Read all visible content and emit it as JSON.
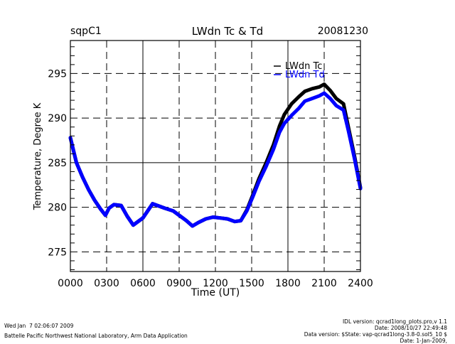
{
  "header": {
    "site": "sqpC1",
    "title": "LWdn Tc & Td",
    "date": "20081230"
  },
  "footer": {
    "timestamp": "Wed Jan  7 02:06:07 2009",
    "lab": "Battelle Pacific Northwest National Laboratory, Arm Data Application",
    "idl_version": "IDL version: qcrad1long_plots.pro,v 1.1",
    "idl_date": "Date: 2008/10/27 22:49:48",
    "data_version": "Data version: $State: vap-qcrad1long-3.8-0.sol5_10 $",
    "data_date": "Date: 1-Jan-2009,"
  },
  "chart_data": {
    "type": "line",
    "title": "LWdn Tc & Td",
    "xlabel": "Time (UT)",
    "ylabel": "Temperature, Degree K",
    "xlim": [
      0,
      24
    ],
    "ylim": [
      272.8,
      298.7
    ],
    "x_ticks": [
      0,
      3,
      6,
      9,
      12,
      15,
      18,
      21,
      24
    ],
    "x_tick_labels": [
      "0000",
      "0300",
      "0600",
      "0900",
      "1200",
      "1500",
      "1800",
      "2100",
      "2400"
    ],
    "y_ticks": [
      275,
      280,
      285,
      290,
      295
    ],
    "y_tick_labels": [
      "275",
      "280",
      "285",
      "290",
      "295"
    ],
    "grid": true,
    "legend_position": "top-right",
    "series": [
      {
        "name": "LWdn Tc",
        "color": "#000000",
        "x": [
          0,
          0.5,
          1,
          1.5,
          2,
          2.5,
          2.9,
          3.2,
          3.6,
          4.2,
          4.7,
          5.2,
          5.6,
          6.0,
          6.5,
          6.8,
          7.2,
          7.8,
          8.5,
          9.1,
          9.6,
          10.1,
          10.6,
          11.2,
          11.8,
          12.4,
          13.0,
          13.6,
          14.1,
          14.6,
          15.1,
          15.6,
          16.2,
          16.8,
          17.3,
          17.7,
          18.3,
          18.9,
          19.4,
          20.0,
          20.6,
          21.0,
          21.5,
          22.0,
          22.6,
          23.0,
          23.5,
          24.0
        ],
        "y": [
          287.8,
          285.0,
          283.4,
          282.0,
          280.8,
          279.8,
          279.1,
          279.9,
          280.3,
          280.2,
          279.0,
          278.0,
          278.4,
          278.8,
          279.8,
          280.4,
          280.2,
          279.9,
          279.6,
          279.0,
          278.5,
          277.9,
          278.3,
          278.7,
          278.9,
          278.8,
          278.7,
          278.4,
          278.5,
          279.7,
          281.4,
          283.2,
          285.0,
          287.0,
          289.1,
          290.4,
          291.6,
          292.4,
          293.0,
          293.3,
          293.5,
          293.8,
          293.1,
          292.2,
          291.6,
          289.0,
          285.8,
          282.2
        ]
      },
      {
        "name": "LWdn Td",
        "color": "#0000ff",
        "x": [
          0,
          0.5,
          1,
          1.5,
          2,
          2.5,
          2.9,
          3.2,
          3.6,
          4.2,
          4.7,
          5.2,
          5.6,
          6.0,
          6.5,
          6.8,
          7.2,
          7.8,
          8.5,
          9.1,
          9.6,
          10.1,
          10.6,
          11.2,
          11.8,
          12.4,
          13.0,
          13.6,
          14.1,
          14.6,
          15.1,
          15.6,
          16.2,
          16.8,
          17.3,
          17.7,
          18.3,
          18.9,
          19.4,
          20.0,
          20.6,
          21.0,
          21.5,
          22.0,
          22.6,
          23.0,
          23.5,
          24.0
        ],
        "y": [
          287.8,
          285.0,
          283.4,
          282.0,
          280.8,
          279.8,
          279.1,
          279.9,
          280.3,
          280.2,
          279.0,
          278.0,
          278.4,
          278.8,
          279.8,
          280.4,
          280.2,
          279.9,
          279.6,
          279.0,
          278.5,
          277.9,
          278.3,
          278.7,
          278.9,
          278.8,
          278.7,
          278.4,
          278.5,
          279.6,
          281.2,
          282.9,
          284.6,
          286.5,
          288.4,
          289.4,
          290.3,
          291.1,
          291.9,
          292.2,
          292.5,
          292.8,
          292.2,
          291.4,
          290.9,
          288.6,
          285.5,
          282.1
        ]
      }
    ]
  }
}
